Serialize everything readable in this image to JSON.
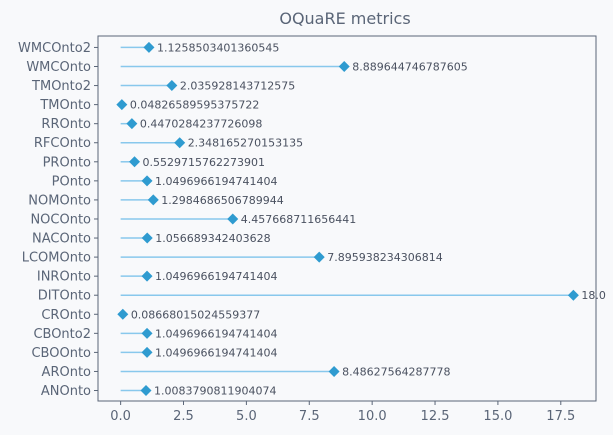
{
  "chart_data": {
    "type": "lollipop",
    "title": "OQuaRE metrics",
    "xlabel": "",
    "ylabel": "",
    "xlim": [
      -0.9,
      18.9
    ],
    "xticks": [
      0.0,
      2.5,
      5.0,
      7.5,
      10.0,
      12.5,
      15.0,
      17.5
    ],
    "xtick_labels": [
      "0.0",
      "2.5",
      "5.0",
      "7.5",
      "10.0",
      "12.5",
      "15.0",
      "17.5"
    ],
    "grid": false,
    "colors": {
      "stem": "#88c8ec",
      "marker": "#2f9bd0",
      "axis": "#5a6577",
      "text": "#5a6577",
      "background": "#f8f9fb"
    },
    "categories": [
      "WMCOnto2",
      "WMCOnto",
      "TMOnto2",
      "TMOnto",
      "RROnto",
      "RFCOnto",
      "PROnto",
      "POnto",
      "NOMOnto",
      "NOCOnto",
      "NACOnto",
      "LCOMOnto",
      "INROnto",
      "DITOnto",
      "CROnto",
      "CBOnto2",
      "CBOOnto",
      "AROnto",
      "ANOnto"
    ],
    "values": [
      1.1258503401360545,
      8.889644746787605,
      2.035928143712575,
      0.04826589595375722,
      0.4470284237726098,
      2.348165270153135,
      0.5529715762273901,
      1.0496966194741404,
      1.2984686506789944,
      4.457668711656441,
      1.056689342403628,
      7.895938234306814,
      1.0496966194741404,
      18.0,
      0.08668015024559377,
      1.0496966194741404,
      1.0496966194741404,
      8.48627564287778,
      1.0083790811904074
    ],
    "value_labels": [
      "1.1258503401360545",
      "8.889644746787605",
      "2.035928143712575",
      "0.04826589595375722",
      "0.4470284237726098",
      "2.348165270153135",
      "0.5529715762273901",
      "1.0496966194741404",
      "1.2984686506789944",
      "4.457668711656441",
      "1.056689342403628",
      "7.895938234306814",
      "1.0496966194741404",
      "18.0",
      "0.08668015024559377",
      "1.0496966194741404",
      "1.0496966194741404",
      "8.48627564287778",
      "1.0083790811904074"
    ]
  }
}
